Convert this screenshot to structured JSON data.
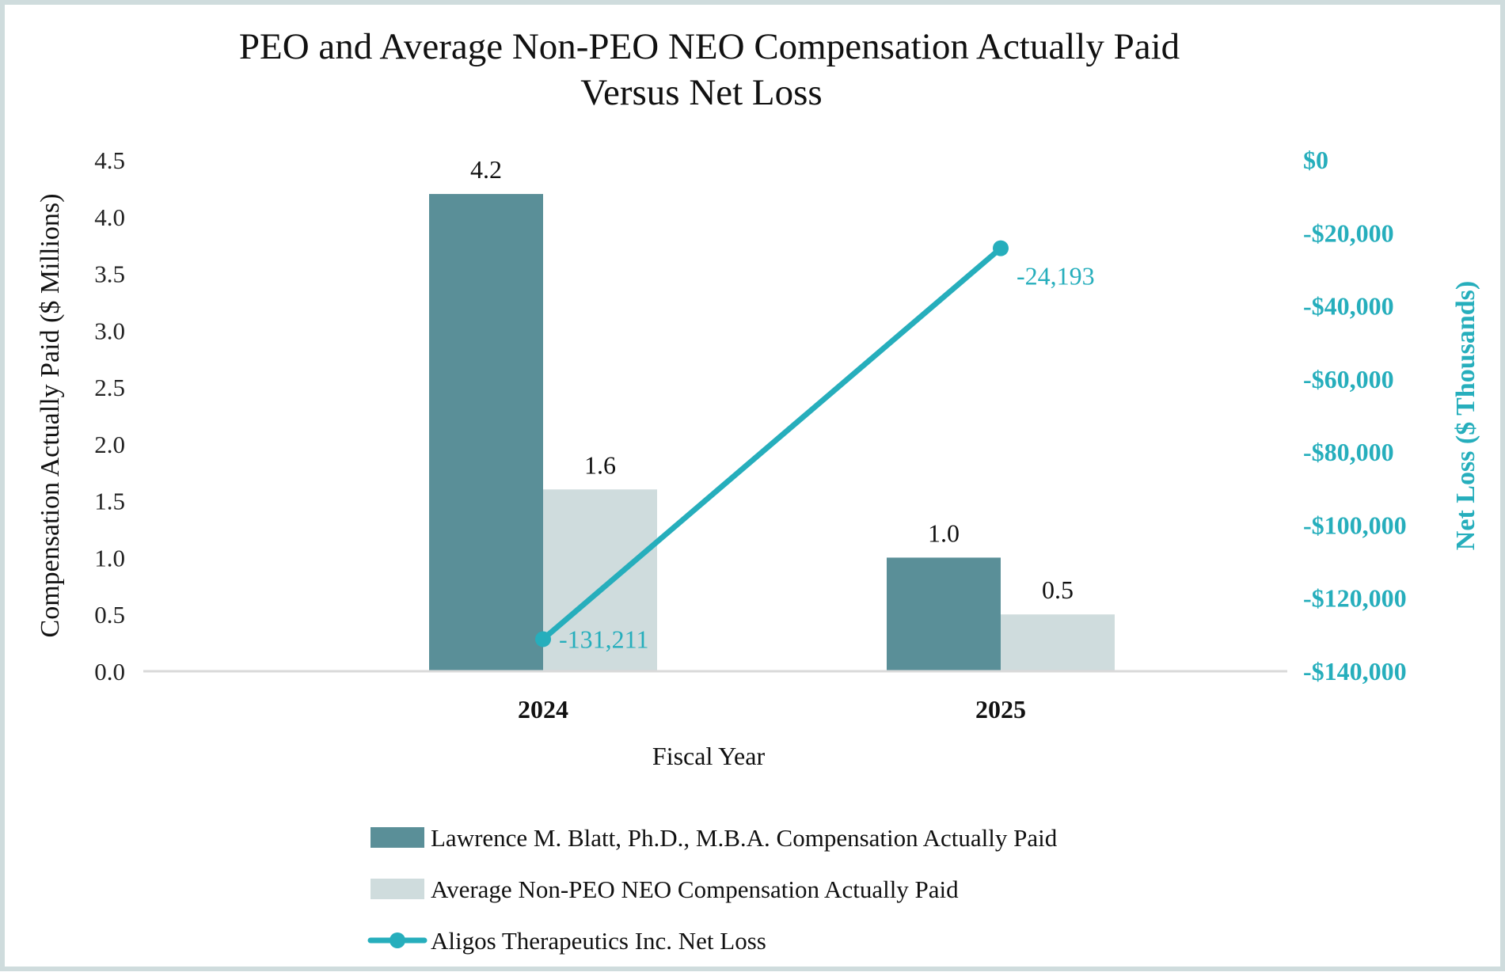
{
  "colors": {
    "peo_bar": "#5a8f98",
    "neo_bar": "#cfdcdd",
    "net_loss_line": "#26aebc",
    "axis_line": "#d9d9d9",
    "right_axis_text": "#26aebc",
    "frame": "#cfdcdd"
  },
  "chart_data": {
    "type": "bar",
    "title_line1": "PEO and Average Non-PEO NEO Compensation Actually Paid",
    "title_line2": "Versus Net Loss",
    "xlabel": "Fiscal Year",
    "ylabel": "Compensation Actually Paid ($ Millions)",
    "ylabel_right": "Net Loss ($ Thousands)",
    "categories": [
      "2024",
      "2025"
    ],
    "ylim": [
      0,
      4.5
    ],
    "ylim_right": [
      -140000,
      0
    ],
    "yticks": [
      "0.0",
      "0.5",
      "1.0",
      "1.5",
      "2.0",
      "2.5",
      "3.0",
      "3.5",
      "4.0",
      "4.5"
    ],
    "yticks_right": [
      "$0",
      "-$20,000",
      "-$40,000",
      "-$60,000",
      "-$80,000",
      "-$100,000",
      "-$120,000",
      "-$140,000"
    ],
    "series": [
      {
        "name": "Lawrence M. Blatt, Ph.D., M.B.A. Compensation Actually Paid",
        "kind": "bar",
        "axis": "left",
        "values": [
          4.2,
          1.0
        ],
        "labels": [
          "4.2",
          "1.0"
        ]
      },
      {
        "name": "Average Non-PEO NEO Compensation Actually Paid",
        "kind": "bar",
        "axis": "left",
        "values": [
          1.6,
          0.5
        ],
        "labels": [
          "1.6",
          "0.5"
        ]
      },
      {
        "name": "Aligos Therapeutics Inc. Net Loss",
        "kind": "line",
        "axis": "right",
        "values": [
          -131211,
          -24193
        ],
        "labels": [
          "-131,211",
          "-24,193"
        ]
      }
    ],
    "grid": false,
    "legend_position": "bottom"
  }
}
